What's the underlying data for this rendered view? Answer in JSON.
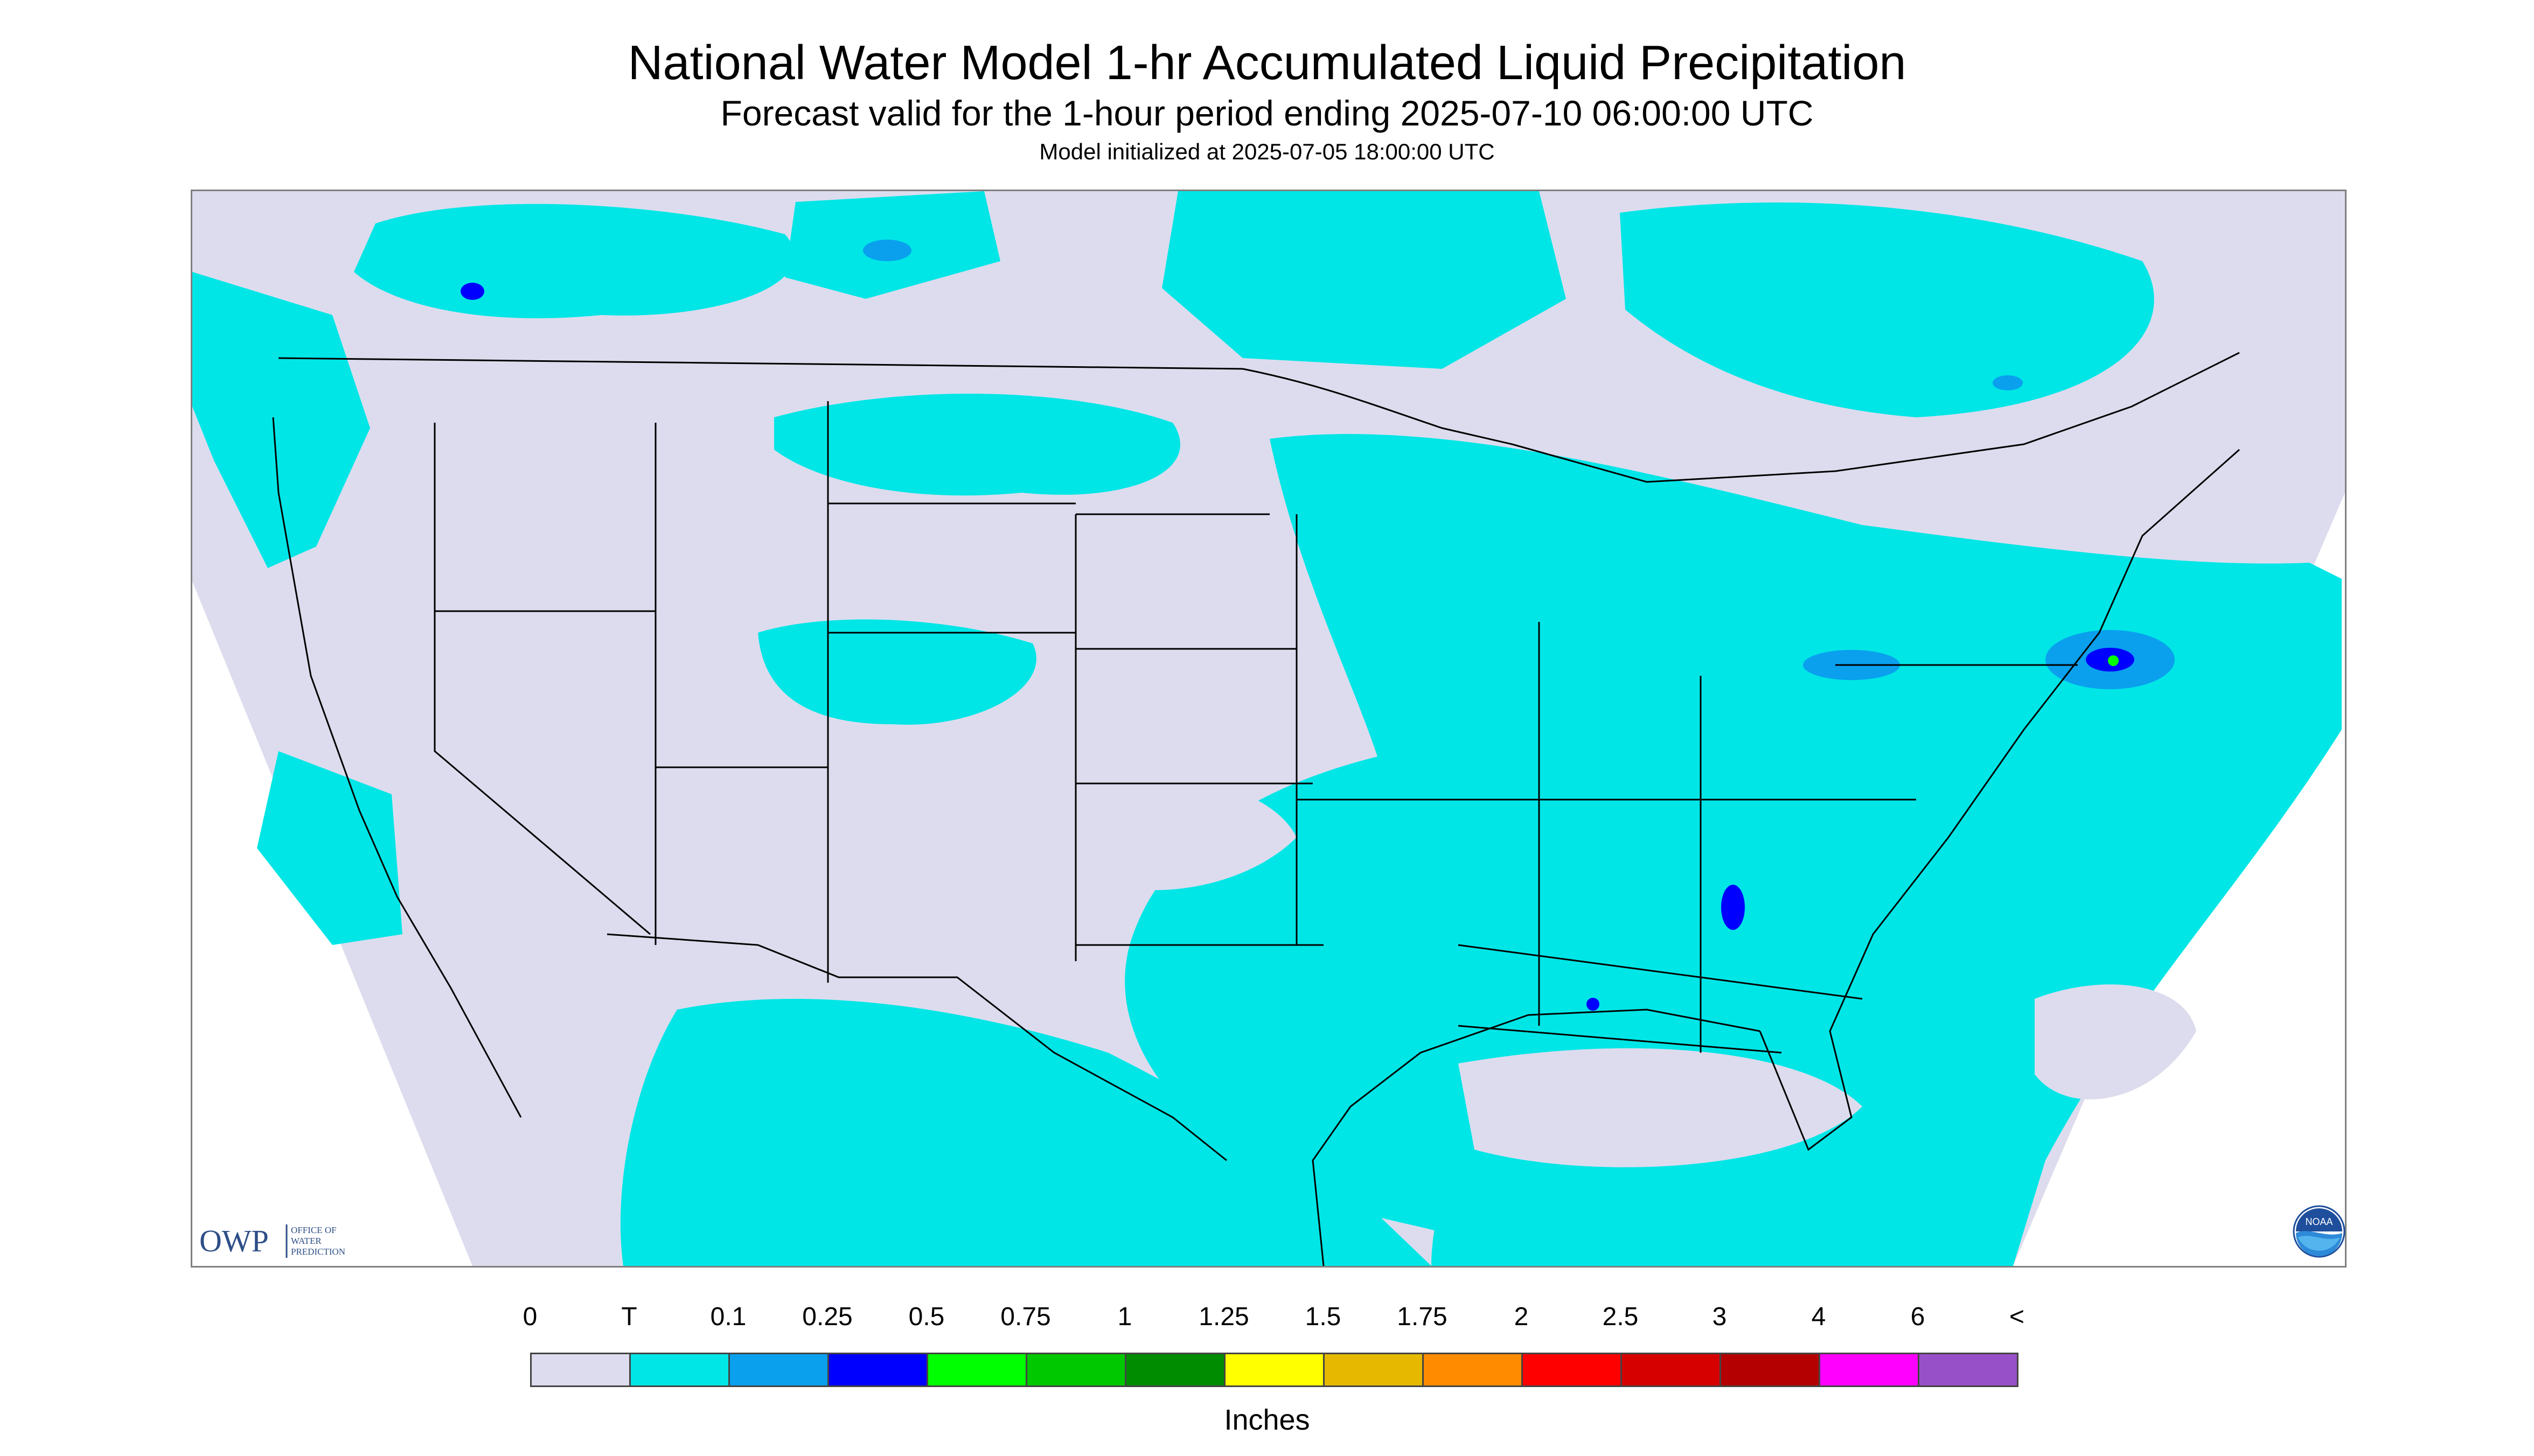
{
  "title": "National Water Model 1-hr Accumulated Liquid Precipitation",
  "subtitle": "Forecast valid for the 1-hour period ending 2025-07-10 06:00:00 UTC",
  "init_line": "Model initialized at 2025-07-05 18:00:00 UTC",
  "logos": {
    "owp_letters": "OWP",
    "owp_text": [
      "OFFICE OF",
      "WATER",
      "PREDICTION"
    ],
    "noaa_text": "NOAA"
  },
  "legend": {
    "tick_labels": [
      "0",
      "T",
      "0.1",
      "0.25",
      "0.5",
      "0.75",
      "1",
      "1.25",
      "1.5",
      "1.75",
      "2",
      "2.5",
      "3",
      "4",
      "6",
      "<"
    ],
    "colors": [
      "#dcdcee",
      "#00e6e6",
      "#0aa0ee",
      "#0000ff",
      "#00ff00",
      "#00c800",
      "#008c00",
      "#ffff00",
      "#e6b900",
      "#ff8c00",
      "#ff0000",
      "#d60000",
      "#b40000",
      "#ff00ff",
      "#9850c8"
    ],
    "units": "Inches"
  },
  "map": {
    "background_color": "#dcdcee",
    "outside_domain_color": "#ffffff",
    "boundary_color": "#000000",
    "projection_note": "Lambert conformal CONUS domain",
    "features": [
      {
        "name": "heavy-precip-new-jersey-coast",
        "category_color": "#0000ff"
      },
      {
        "name": "heavy-precip-georgia",
        "category_color": "#0aa0ee"
      },
      {
        "name": "heavy-precip-gulf-coast",
        "category_color": "#0000ff"
      }
    ]
  }
}
